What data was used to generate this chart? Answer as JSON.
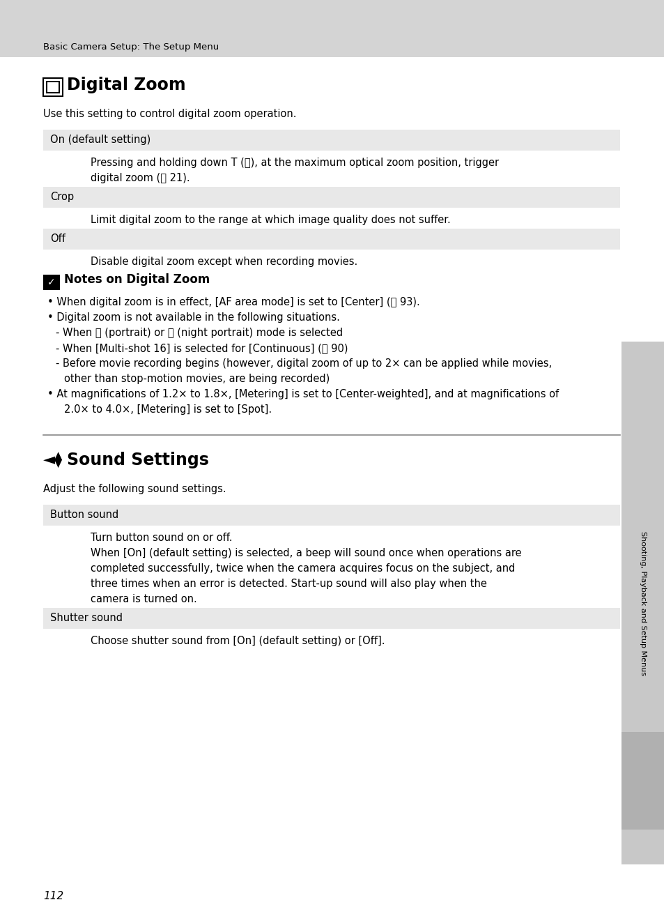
{
  "bg_color": "#ffffff",
  "header_bg": "#d4d4d4",
  "row_bg": "#e8e8e8",
  "sidebar_bg": "#c8c8c8",
  "header_label": "Basic Camera Setup: The Setup Menu",
  "section1_intro": "Use this setting to control digital zoom operation.",
  "rows": [
    {
      "label": "On (default setting)",
      "text": [
        "Pressing and holding down T (ⓠ), at the maximum optical zoom position, trigger",
        "digital zoom (ⓡ 21)."
      ]
    },
    {
      "label": "Crop",
      "text": [
        "Limit digital zoom to the range at which image quality does not suffer."
      ]
    },
    {
      "label": "Off",
      "text": [
        "Disable digital zoom except when recording movies."
      ]
    }
  ],
  "notes_bullets": [
    {
      "level": 0,
      "text": "When digital zoom is in effect, [AF area mode] is set to [Center] (ⓡ 93)."
    },
    {
      "level": 0,
      "text": "Digital zoom is not available in the following situations."
    },
    {
      "level": 1,
      "text": "- When ⓠ (portrait) or ⓡ (night portrait) mode is selected"
    },
    {
      "level": 1,
      "text": "- When [Multi-shot 16] is selected for [Continuous] (ⓡ 90)"
    },
    {
      "level": 1,
      "text": "- Before movie recording begins (however, digital zoom of up to 2× can be applied while movies,"
    },
    {
      "level": 2,
      "text": "other than stop-motion movies, are being recorded)"
    },
    {
      "level": 0,
      "text": "At magnifications of 1.2× to 1.8×, [Metering] is set to [Center-weighted], and at magnifications of"
    },
    {
      "level": 2,
      "text": "2.0× to 4.0×, [Metering] is set to [Spot]."
    }
  ],
  "section2_intro": "Adjust the following sound settings.",
  "rows2": [
    {
      "label": "Button sound",
      "text": [
        "Turn button sound on or off.",
        "When [On] (default setting) is selected, a beep will sound once when operations are",
        "completed successfully, twice when the camera acquires focus on the subject, and",
        "three times when an error is detected. Start-up sound will also play when the",
        "camera is turned on."
      ]
    },
    {
      "label": "Shutter sound",
      "text": [
        "Choose shutter sound from [On] (default setting) or [Off]."
      ]
    }
  ],
  "sidebar_text": "Shooting, Playback and Setup Menus",
  "page_number": "112"
}
